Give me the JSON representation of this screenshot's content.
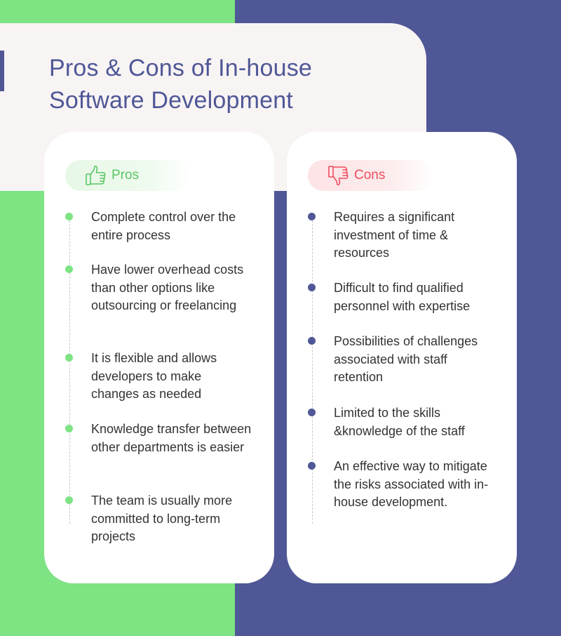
{
  "title": "Pros & Cons of In-house Software Development",
  "colors": {
    "green": "#7de383",
    "navy": "#4f5796",
    "pros_text": "#5cc665",
    "cons_text": "#ef4d5f"
  },
  "pros": {
    "label": "Pros",
    "icon": "thumbs-up-icon",
    "items": [
      "Complete control over the entire process",
      "Have lower overhead costs than other options like outsourcing or freelancing",
      "It is flexible and allows developers to make changes as needed",
      "Knowledge transfer between other departments is easier",
      "The team is usually more committed to long-term projects"
    ]
  },
  "cons": {
    "label": "Cons",
    "icon": "thumbs-down-icon",
    "items": [
      "Requires a significant investment of time & resources",
      "Difficult to find qualified personnel with expertise",
      "Possibilities of challenges associated with staff retention",
      "Limited to the skills &knowledge of the staff",
      "An effective way to mitigate the risks associated with in-house development."
    ]
  }
}
